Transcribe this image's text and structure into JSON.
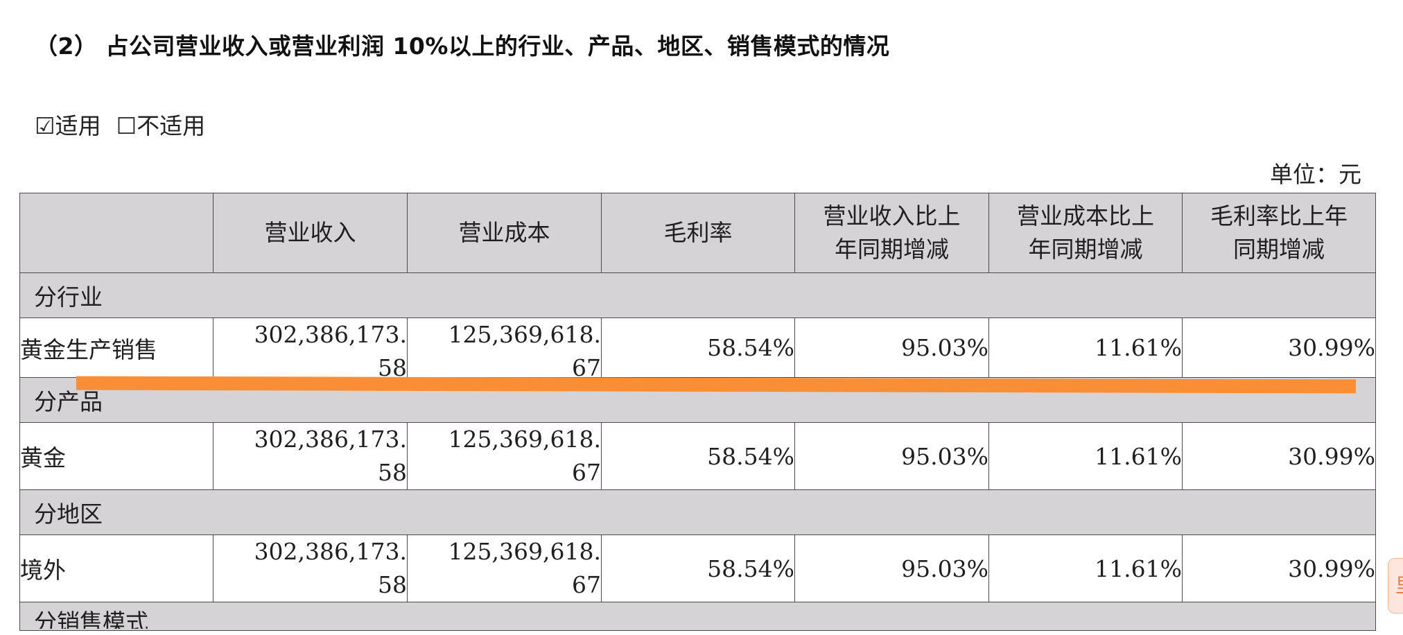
{
  "heading": "（2） 占公司营业收入或营业利润 10%以上的行业、产品、地区、销售模式的情况",
  "check_applicable": "☑适用",
  "check_not_applicable": "☐不适用",
  "unit": "单位：元",
  "table": {
    "headers": {
      "blank": "",
      "revenue": "营业收入",
      "cost": "营业成本",
      "margin": "毛利率",
      "revenue_yoy_l1": "营业收入比上",
      "revenue_yoy_l2": "年同期增减",
      "cost_yoy_l1": "营业成本比上",
      "cost_yoy_l2": "年同期增减",
      "margin_yoy_l1": "毛利率比上年",
      "margin_yoy_l2": "同期增减"
    },
    "sections": {
      "industry": "分行业",
      "product": "分产品",
      "region": "分地区",
      "sales_mode": "分销售模式"
    },
    "rows": {
      "industry_row": {
        "label": "黄金生产销售",
        "revenue_l1": "302,386,173.",
        "revenue_l2": "58",
        "cost_l1": "125,369,618.",
        "cost_l2": "67",
        "margin": "58.54%",
        "revenue_yoy": "95.03%",
        "cost_yoy": "11.61%",
        "margin_yoy": "30.99%"
      },
      "product_row": {
        "label": "黄金",
        "revenue_l1": "302,386,173.",
        "revenue_l2": "58",
        "cost_l1": "125,369,618.",
        "cost_l2": "67",
        "margin": "58.54%",
        "revenue_yoy": "95.03%",
        "cost_yoy": "11.61%",
        "margin_yoy": "30.99%"
      },
      "region_row": {
        "label": "境外",
        "revenue_l1": "302,386,173.",
        "revenue_l2": "58",
        "cost_l1": "125,369,618.",
        "cost_l2": "67",
        "margin": "58.54%",
        "revenue_yoy": "95.03%",
        "cost_yoy": "11.61%",
        "margin_yoy": "30.99%"
      }
    }
  },
  "edge_tab_glyph": "里",
  "colors": {
    "header_bg": "#d6d3d6",
    "highlight_stroke": "#f98e35",
    "border": "#4a4a4a"
  }
}
